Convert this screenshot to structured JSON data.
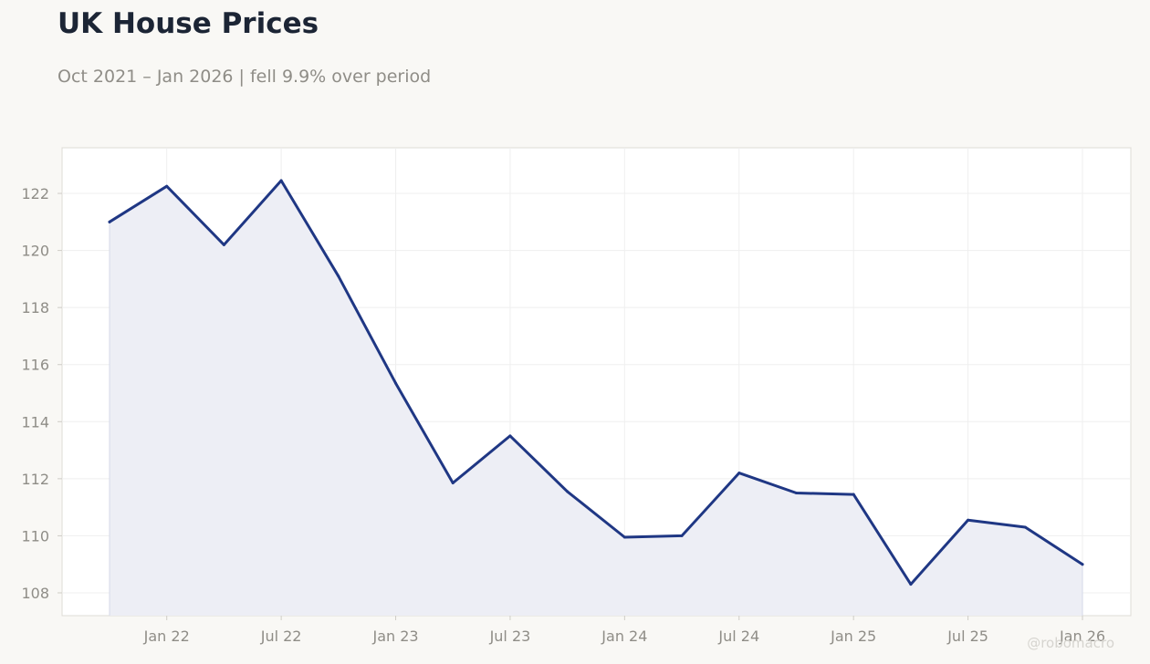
{
  "title": "UK House Prices",
  "subtitle": "Oct 2021 – Jan 2026 | fell 9.9% over period",
  "watermark": "@robomacro",
  "colors": {
    "background": "#f9f8f5",
    "plot_background": "#ffffff",
    "line": "#1f3784",
    "fill": "#edeef5",
    "grid": "#efefef",
    "axis_text": "#8f8d87",
    "title": "#1c2535"
  },
  "chart_data": {
    "type": "area",
    "title": "UK House Prices",
    "subtitle": "Oct 2021 – Jan 2026 | fell 9.9% over period",
    "xlabel": "",
    "ylabel": "",
    "x": [
      "Oct 2021",
      "Jan 2022",
      "Apr 2022",
      "Jul 2022",
      "Oct 2022",
      "Jan 2023",
      "Apr 2023",
      "Jul 2023",
      "Oct 2023",
      "Jan 2024",
      "Apr 2024",
      "Jul 2024",
      "Oct 2024",
      "Jan 2025",
      "Apr 2025",
      "Jul 2025",
      "Oct 2025",
      "Jan 2026"
    ],
    "x_months": [
      0,
      3,
      6,
      9,
      12,
      15,
      18,
      21,
      24,
      27,
      30,
      33,
      36,
      39,
      42,
      45,
      48,
      51
    ],
    "y": [
      121.0,
      122.25,
      120.2,
      122.45,
      119.1,
      115.35,
      111.85,
      113.5,
      111.55,
      109.95,
      110.0,
      112.2,
      111.5,
      111.45,
      108.3,
      110.55,
      110.3,
      109.0
    ],
    "x_ticks": [
      {
        "label": "Jan 22",
        "month": 3
      },
      {
        "label": "Jul 22",
        "month": 9
      },
      {
        "label": "Jan 23",
        "month": 15
      },
      {
        "label": "Jul 23",
        "month": 21
      },
      {
        "label": "Jan 24",
        "month": 27
      },
      {
        "label": "Jul 24",
        "month": 33
      },
      {
        "label": "Jan 25",
        "month": 39
      },
      {
        "label": "Jul 25",
        "month": 45
      },
      {
        "label": "Jan 26",
        "month": 51
      }
    ],
    "y_ticks": [
      108,
      110,
      112,
      114,
      116,
      118,
      120,
      122
    ],
    "ylim": [
      107.2,
      123.6
    ],
    "grid": true,
    "legend": "none"
  }
}
